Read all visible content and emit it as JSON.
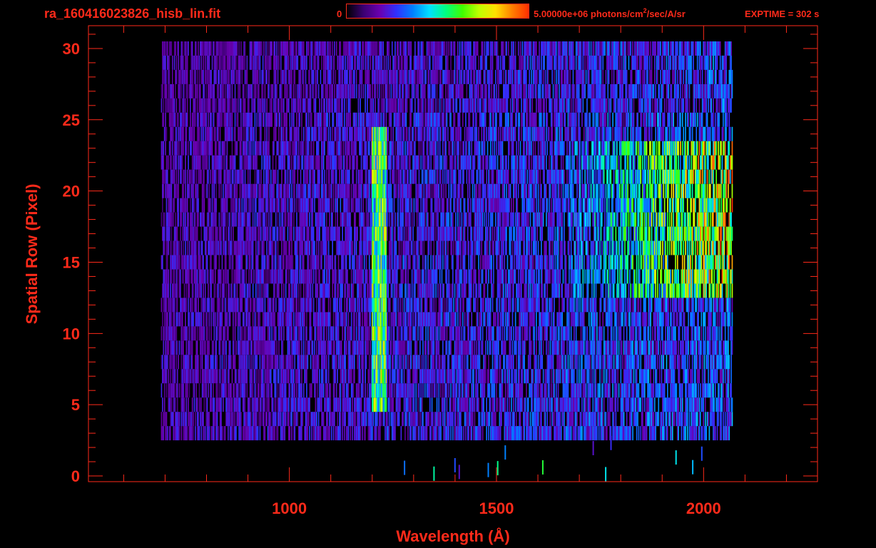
{
  "header": {
    "filename": "ra_160416023826_hisb_lin.fit",
    "colorbar_min": "0",
    "colorbar_max_value": "5.00000e+06 photons/cm",
    "colorbar_max_sup": "2",
    "colorbar_max_tail": "/sec/A/sr",
    "exptime": "EXPTIME = 302 s"
  },
  "colors": {
    "axis": "#ff2a1a",
    "background": "#000000",
    "colormap": [
      "#000000",
      "#3a0070",
      "#6a00b0",
      "#3030ff",
      "#0080ff",
      "#00e0ff",
      "#00ff80",
      "#40ff00",
      "#c0ff00",
      "#ffe000",
      "#ff8000",
      "#ff3000"
    ]
  },
  "chart_data": {
    "type": "heatmap",
    "xlabel": "Wavelength (Å)",
    "ylabel": "Spatial Row (Pixel)",
    "xlim": [
      515,
      2275
    ],
    "ylim": [
      -0.4,
      31.6
    ],
    "x_ticks": [
      1000,
      1500,
      2000
    ],
    "x_tick_labels": [
      "1000",
      "1500",
      "2000"
    ],
    "x_minor_step": 100,
    "y_ticks": [
      0,
      5,
      10,
      15,
      20,
      25,
      30
    ],
    "y_tick_labels": [
      "0",
      "5",
      "10",
      "15",
      "20",
      "25",
      "30"
    ],
    "y_minor_step": 1,
    "colorbar_range": [
      0,
      5000000
    ],
    "spectrum_extent": {
      "wavelength": [
        690,
        2070
      ],
      "rows": [
        3,
        30
      ]
    },
    "features": [
      {
        "name": "Lyman-alpha line",
        "wavelength": 1216,
        "rows": [
          5,
          24
        ],
        "relative_intensity": 0.55
      },
      {
        "name": "long-wavelength continuum",
        "wavelength_range": [
          1650,
          2070
        ],
        "rows": [
          13,
          23
        ],
        "relative_intensity": 0.5
      }
    ]
  }
}
